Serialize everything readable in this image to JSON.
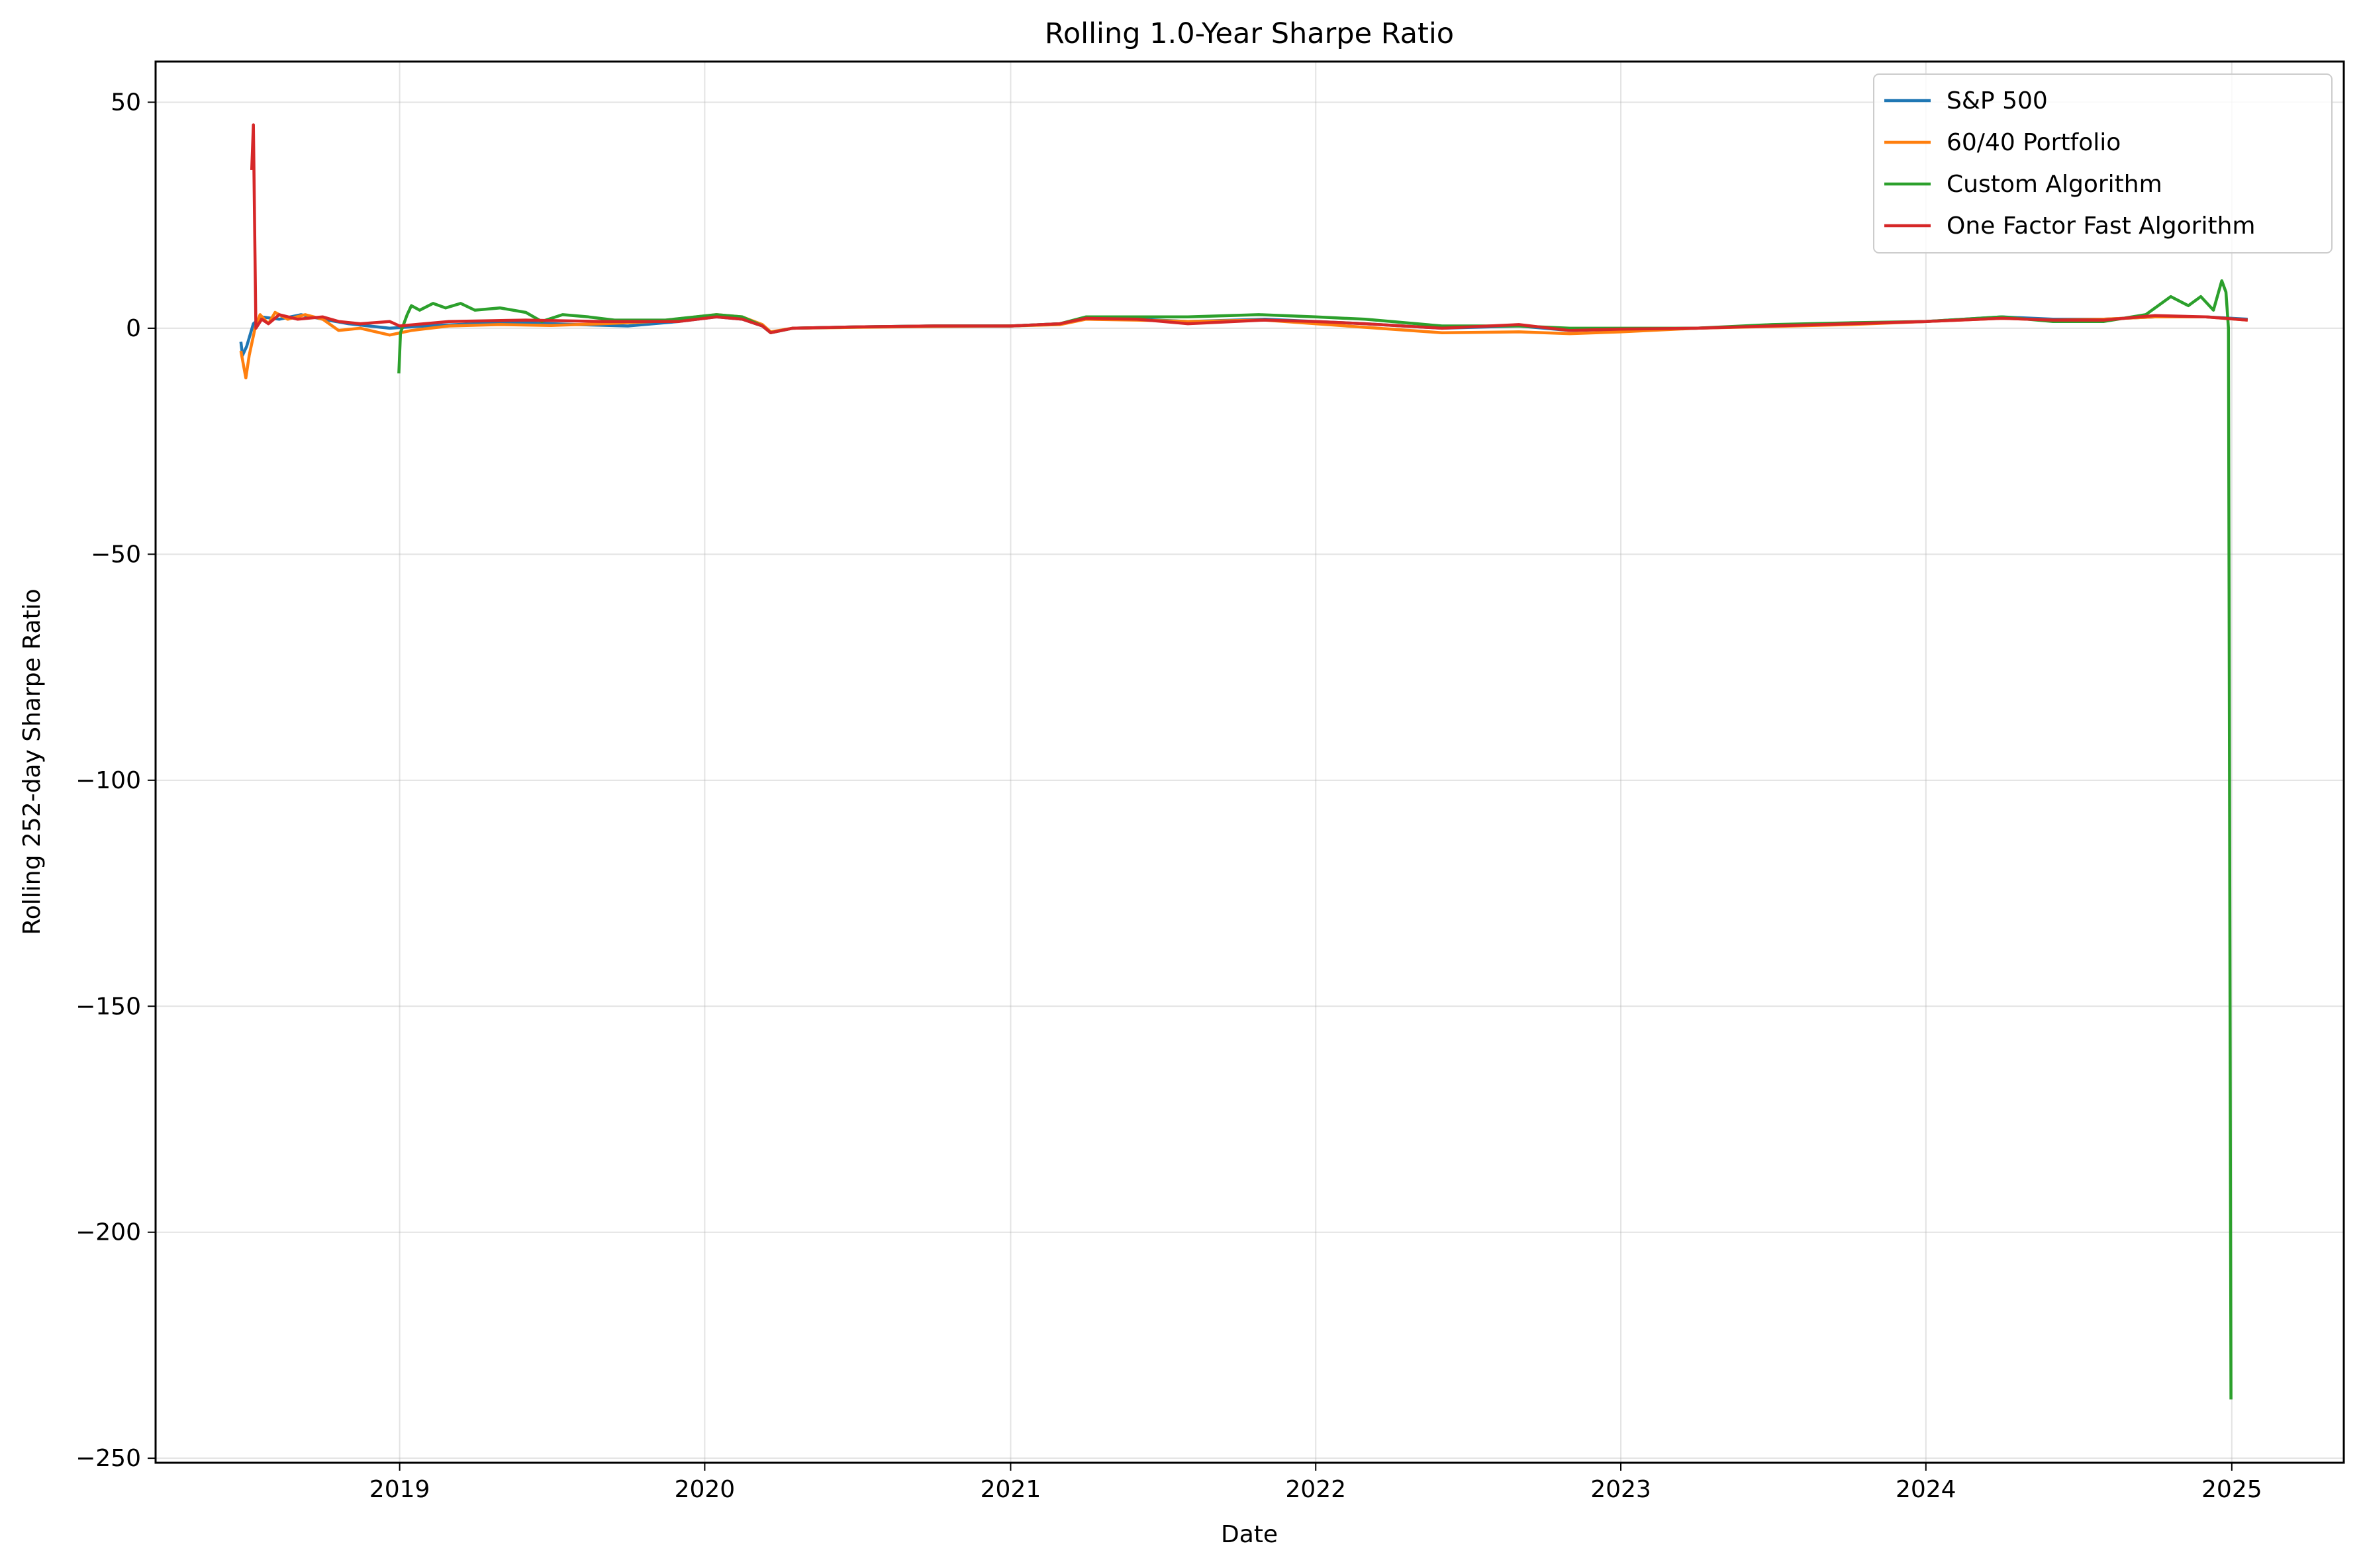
{
  "chart_data": {
    "type": "line",
    "title": "Rolling 1.0-Year Sharpe Ratio",
    "xlabel": "Date",
    "ylabel": "Rolling 252-day Sharpe Ratio",
    "xlim": [
      "2018-03-15",
      "2025-05-15"
    ],
    "ylim": [
      -251,
      59
    ],
    "x_ticks": [
      "2019-01-01",
      "2020-01-01",
      "2021-01-01",
      "2022-01-01",
      "2023-01-01",
      "2024-01-01",
      "2025-01-01"
    ],
    "x_tick_labels": [
      "2019",
      "2020",
      "2021",
      "2022",
      "2023",
      "2024",
      "2025"
    ],
    "y_ticks": [
      50,
      0,
      -50,
      -100,
      -150,
      -200,
      -250
    ],
    "y_tick_labels": [
      "50",
      "0",
      "−50",
      "−100",
      "−150",
      "−200",
      "−250"
    ],
    "grid": true,
    "legend_position": "top-right",
    "series": [
      {
        "name": "S&P 500",
        "color": "#1f77b4",
        "points": [
          [
            "2018-06-25",
            -3
          ],
          [
            "2018-06-27",
            -6
          ],
          [
            "2018-07-02",
            -4
          ],
          [
            "2018-07-10",
            1
          ],
          [
            "2018-07-20",
            2.5
          ],
          [
            "2018-08-10",
            2
          ],
          [
            "2018-09-05",
            3
          ],
          [
            "2018-10-01",
            2
          ],
          [
            "2018-11-01",
            1
          ],
          [
            "2018-12-20",
            0
          ],
          [
            "2019-02-01",
            0.5
          ],
          [
            "2019-04-01",
            1
          ],
          [
            "2019-06-01",
            1.2
          ],
          [
            "2019-08-01",
            0.8
          ],
          [
            "2019-10-01",
            0.5
          ],
          [
            "2019-12-01",
            1.5
          ],
          [
            "2020-01-15",
            2.5
          ],
          [
            "2020-02-15",
            2
          ],
          [
            "2020-03-10",
            0.5
          ],
          [
            "2020-03-20",
            -1
          ],
          [
            "2020-04-15",
            0
          ],
          [
            "2020-07-01",
            0.3
          ],
          [
            "2020-10-01",
            0.5
          ],
          [
            "2021-01-01",
            0.5
          ],
          [
            "2021-03-01",
            1
          ],
          [
            "2021-04-01",
            2.3
          ],
          [
            "2021-06-01",
            2
          ],
          [
            "2021-08-01",
            1.5
          ],
          [
            "2021-11-01",
            2
          ],
          [
            "2022-01-01",
            1.5
          ],
          [
            "2022-03-01",
            1
          ],
          [
            "2022-06-01",
            0
          ],
          [
            "2022-09-01",
            0.5
          ],
          [
            "2022-11-01",
            -0.5
          ],
          [
            "2023-01-01",
            -0.2
          ],
          [
            "2023-04-01",
            0
          ],
          [
            "2023-07-01",
            0.5
          ],
          [
            "2023-10-01",
            1
          ],
          [
            "2024-01-01",
            1.5
          ],
          [
            "2024-04-01",
            2.5
          ],
          [
            "2024-06-01",
            2
          ],
          [
            "2024-08-01",
            2
          ],
          [
            "2024-10-01",
            2.5
          ],
          [
            "2024-12-01",
            2.5
          ],
          [
            "2025-01-20",
            2
          ]
        ]
      },
      {
        "name": "60/40 Portfolio",
        "color": "#ff7f0e",
        "points": [
          [
            "2018-06-25",
            -5
          ],
          [
            "2018-07-01",
            -11
          ],
          [
            "2018-07-05",
            -6
          ],
          [
            "2018-07-12",
            0
          ],
          [
            "2018-07-18",
            3
          ],
          [
            "2018-07-28",
            1
          ],
          [
            "2018-08-05",
            3.5
          ],
          [
            "2018-08-20",
            2
          ],
          [
            "2018-09-10",
            3
          ],
          [
            "2018-10-01",
            2
          ],
          [
            "2018-10-20",
            -0.5
          ],
          [
            "2018-11-15",
            0
          ],
          [
            "2018-12-20",
            -1.5
          ],
          [
            "2019-01-15",
            -0.5
          ],
          [
            "2019-03-01",
            0.5
          ],
          [
            "2019-05-01",
            0.8
          ],
          [
            "2019-07-01",
            0.6
          ],
          [
            "2019-09-01",
            1
          ],
          [
            "2019-11-01",
            1.5
          ],
          [
            "2020-01-15",
            3
          ],
          [
            "2020-02-15",
            2.5
          ],
          [
            "2020-03-10",
            0.8
          ],
          [
            "2020-03-20",
            -0.8
          ],
          [
            "2020-04-15",
            0
          ],
          [
            "2020-07-01",
            0.2
          ],
          [
            "2020-10-01",
            0.4
          ],
          [
            "2021-01-01",
            0.5
          ],
          [
            "2021-03-01",
            0.8
          ],
          [
            "2021-04-01",
            2
          ],
          [
            "2021-06-01",
            1.8
          ],
          [
            "2021-08-01",
            1.5
          ],
          [
            "2021-11-01",
            1.8
          ],
          [
            "2022-01-01",
            1
          ],
          [
            "2022-03-01",
            0.2
          ],
          [
            "2022-06-01",
            -1
          ],
          [
            "2022-09-01",
            -0.8
          ],
          [
            "2022-11-01",
            -1.2
          ],
          [
            "2023-01-01",
            -0.8
          ],
          [
            "2023-04-01",
            0
          ],
          [
            "2023-07-01",
            0.4
          ],
          [
            "2023-10-01",
            0.8
          ],
          [
            "2024-01-01",
            1.5
          ],
          [
            "2024-04-01",
            2.2
          ],
          [
            "2024-06-01",
            1.8
          ],
          [
            "2024-08-01",
            2
          ],
          [
            "2024-10-01",
            2.5
          ],
          [
            "2024-12-01",
            2.5
          ],
          [
            "2025-01-20",
            1.8
          ]
        ]
      },
      {
        "name": "Custom Algorithm",
        "color": "#2ca02c",
        "points": [
          [
            "2018-12-31",
            -10
          ],
          [
            "2019-01-02",
            -1
          ],
          [
            "2019-01-10",
            3
          ],
          [
            "2019-01-15",
            5
          ],
          [
            "2019-01-25",
            4
          ],
          [
            "2019-02-10",
            5.5
          ],
          [
            "2019-02-25",
            4.5
          ],
          [
            "2019-03-15",
            5.5
          ],
          [
            "2019-04-01",
            4
          ],
          [
            "2019-05-01",
            4.5
          ],
          [
            "2019-06-01",
            3.5
          ],
          [
            "2019-06-20",
            1.5
          ],
          [
            "2019-07-15",
            3
          ],
          [
            "2019-08-15",
            2.5
          ],
          [
            "2019-09-15",
            1.8
          ],
          [
            "2019-11-15",
            1.8
          ],
          [
            "2020-01-15",
            3
          ],
          [
            "2020-02-15",
            2.5
          ],
          [
            "2020-03-10",
            0.5
          ],
          [
            "2020-03-20",
            -1
          ],
          [
            "2020-04-15",
            0
          ],
          [
            "2020-07-01",
            0.3
          ],
          [
            "2020-10-01",
            0.5
          ],
          [
            "2021-01-01",
            0.5
          ],
          [
            "2021-03-01",
            1
          ],
          [
            "2021-04-01",
            2.5
          ],
          [
            "2021-06-01",
            2.5
          ],
          [
            "2021-08-01",
            2.5
          ],
          [
            "2021-10-25",
            3
          ],
          [
            "2022-01-01",
            2.5
          ],
          [
            "2022-03-01",
            2
          ],
          [
            "2022-06-01",
            0.5
          ],
          [
            "2022-09-01",
            0.5
          ],
          [
            "2022-11-01",
            0
          ],
          [
            "2023-01-01",
            0
          ],
          [
            "2023-04-01",
            0
          ],
          [
            "2023-07-01",
            0.8
          ],
          [
            "2023-10-01",
            1.2
          ],
          [
            "2024-01-01",
            1.5
          ],
          [
            "2024-04-01",
            2.5
          ],
          [
            "2024-06-01",
            1.5
          ],
          [
            "2024-08-01",
            1.5
          ],
          [
            "2024-09-20",
            3
          ],
          [
            "2024-10-20",
            7
          ],
          [
            "2024-11-10",
            5
          ],
          [
            "2024-11-25",
            7
          ],
          [
            "2024-12-10",
            4
          ],
          [
            "2024-12-20",
            10.5
          ],
          [
            "2024-12-25",
            8
          ],
          [
            "2024-12-28",
            0
          ],
          [
            "2024-12-31",
            -237
          ]
        ]
      },
      {
        "name": "One Factor Fast Algorithm",
        "color": "#d62728",
        "points": [
          [
            "2018-07-08",
            35
          ],
          [
            "2018-07-10",
            45
          ],
          [
            "2018-07-13",
            0
          ],
          [
            "2018-07-20",
            2
          ],
          [
            "2018-07-28",
            1
          ],
          [
            "2018-08-10",
            3
          ],
          [
            "2018-09-01",
            2
          ],
          [
            "2018-10-01",
            2.5
          ],
          [
            "2018-10-20",
            1.5
          ],
          [
            "2018-11-15",
            1
          ],
          [
            "2018-12-20",
            1.5
          ],
          [
            "2019-01-01",
            0.5
          ],
          [
            "2019-03-01",
            1.5
          ],
          [
            "2019-06-01",
            1.8
          ],
          [
            "2019-09-01",
            1.5
          ],
          [
            "2019-12-01",
            1.5
          ],
          [
            "2020-01-15",
            2.5
          ],
          [
            "2020-02-15",
            2
          ],
          [
            "2020-03-10",
            0.5
          ],
          [
            "2020-03-20",
            -1
          ],
          [
            "2020-04-15",
            0
          ],
          [
            "2020-07-01",
            0.3
          ],
          [
            "2020-10-01",
            0.5
          ],
          [
            "2021-01-01",
            0.5
          ],
          [
            "2021-03-01",
            1
          ],
          [
            "2021-04-01",
            2.2
          ],
          [
            "2021-06-01",
            2
          ],
          [
            "2021-08-01",
            1
          ],
          [
            "2021-11-01",
            1.8
          ],
          [
            "2022-01-01",
            1.5
          ],
          [
            "2022-03-01",
            1
          ],
          [
            "2022-06-01",
            0
          ],
          [
            "2022-09-01",
            0.8
          ],
          [
            "2022-11-01",
            -0.5
          ],
          [
            "2023-01-01",
            -0.2
          ],
          [
            "2023-04-01",
            0
          ],
          [
            "2023-07-01",
            0.5
          ],
          [
            "2023-10-01",
            1
          ],
          [
            "2024-01-01",
            1.5
          ],
          [
            "2024-04-01",
            2.2
          ],
          [
            "2024-06-01",
            1.8
          ],
          [
            "2024-08-01",
            1.8
          ],
          [
            "2024-10-01",
            2.8
          ],
          [
            "2024-12-01",
            2.5
          ],
          [
            "2025-01-20",
            1.8
          ]
        ]
      }
    ]
  }
}
